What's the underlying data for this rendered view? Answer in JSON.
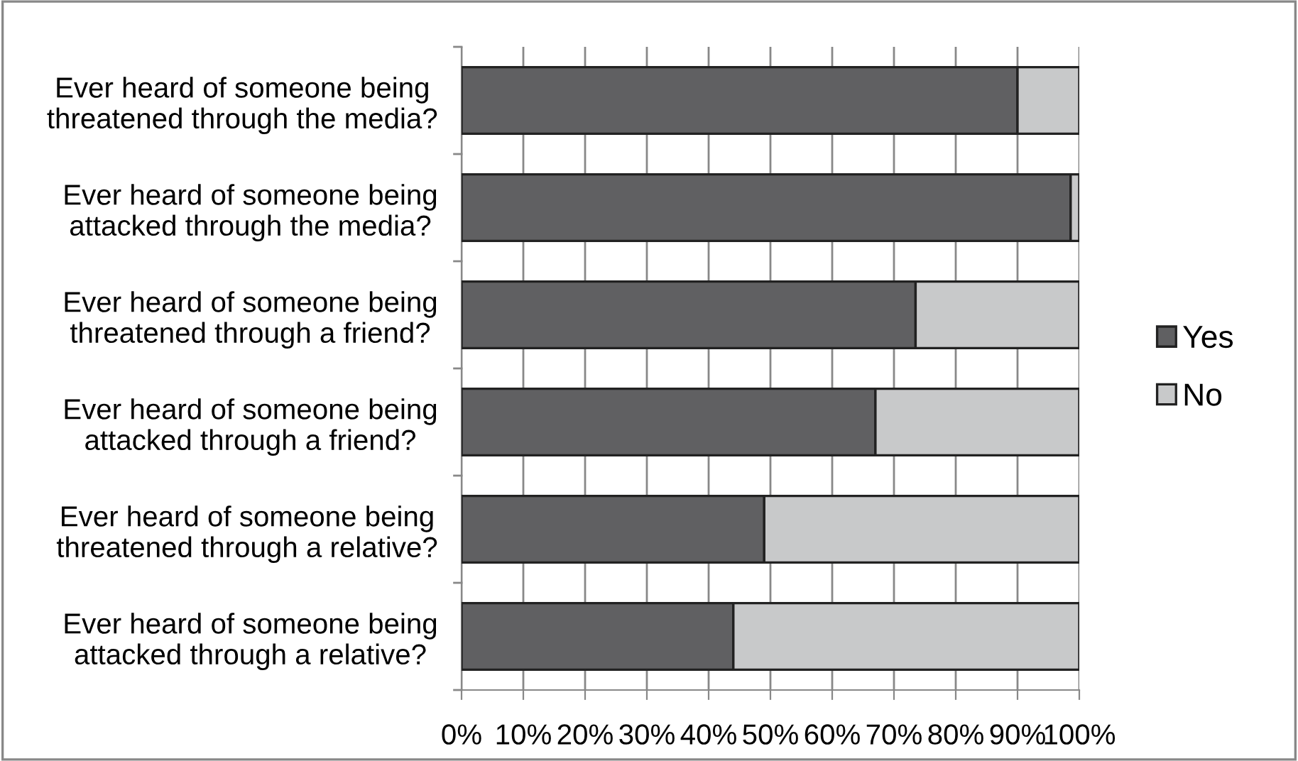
{
  "chart_data": {
    "type": "bar",
    "orientation": "horizontal",
    "stacked": true,
    "categories": [
      "Ever heard of someone being\nthreatened through the media?",
      "Ever heard of someone being\nattacked through the media?",
      "Ever heard of someone being\nthreatened through a friend?",
      "Ever heard of someone being\nattacked through a friend?",
      "Ever heard of someone being\nthreatened through a relative?",
      "Ever heard of someone being\nattacked through a relative?"
    ],
    "series": [
      {
        "name": "Yes",
        "color": "#606062",
        "values": [
          90,
          98.6,
          73.5,
          67,
          49,
          44
        ]
      },
      {
        "name": "No",
        "color": "#c8c9ca",
        "values": [
          10,
          1.4,
          26.5,
          33,
          51,
          56
        ]
      }
    ],
    "xlim": [
      0,
      100
    ],
    "xticks": [
      {
        "value": 0,
        "label": "0%"
      },
      {
        "value": 10,
        "label": "10%"
      },
      {
        "value": 20,
        "label": "20%"
      },
      {
        "value": 30,
        "label": "30%"
      },
      {
        "value": 40,
        "label": "40%"
      },
      {
        "value": 50,
        "label": "50%"
      },
      {
        "value": 60,
        "label": "60%"
      },
      {
        "value": 70,
        "label": "70%"
      },
      {
        "value": 80,
        "label": "80%"
      },
      {
        "value": 90,
        "label": "90%"
      },
      {
        "value": 100,
        "label": "100%"
      }
    ],
    "grid": "x",
    "legend": "right"
  }
}
